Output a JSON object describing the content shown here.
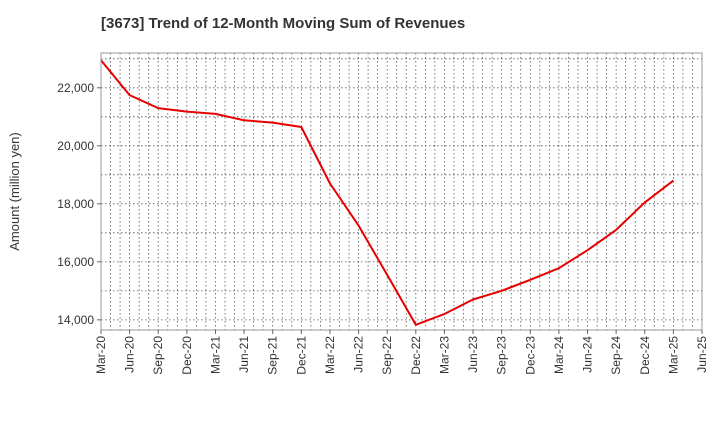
{
  "chart_data": {
    "type": "line",
    "title": "[3673]  Trend of 12-Month Moving Sum of Revenues",
    "xlabel": "",
    "ylabel": "Amount (million yen)",
    "x": [
      "Mar-20",
      "Jun-20",
      "Sep-20",
      "Dec-20",
      "Mar-21",
      "Jun-21",
      "Sep-21",
      "Dec-21",
      "Mar-22",
      "Jun-22",
      "Sep-22",
      "Dec-22",
      "Mar-23",
      "Jun-23",
      "Sep-23",
      "Dec-23",
      "Mar-24",
      "Jun-24",
      "Sep-24",
      "Dec-24",
      "Mar-25",
      "Jun-25"
    ],
    "yticks": [
      "14,000",
      "16,000",
      "18,000",
      "20,000",
      "22,000"
    ],
    "ytick_values": [
      14000,
      16000,
      18000,
      20000,
      22000
    ],
    "ylim": [
      13650,
      23200
    ],
    "grid": true,
    "series": [
      {
        "name": "",
        "color": "#e60000",
        "values": [
          22950,
          21750,
          21300,
          21180,
          21100,
          20880,
          20800,
          20650,
          18700,
          17250,
          15550,
          13830,
          14200,
          14700,
          15000,
          15380,
          15780,
          16400,
          17100,
          18050,
          18800,
          null
        ]
      }
    ]
  }
}
